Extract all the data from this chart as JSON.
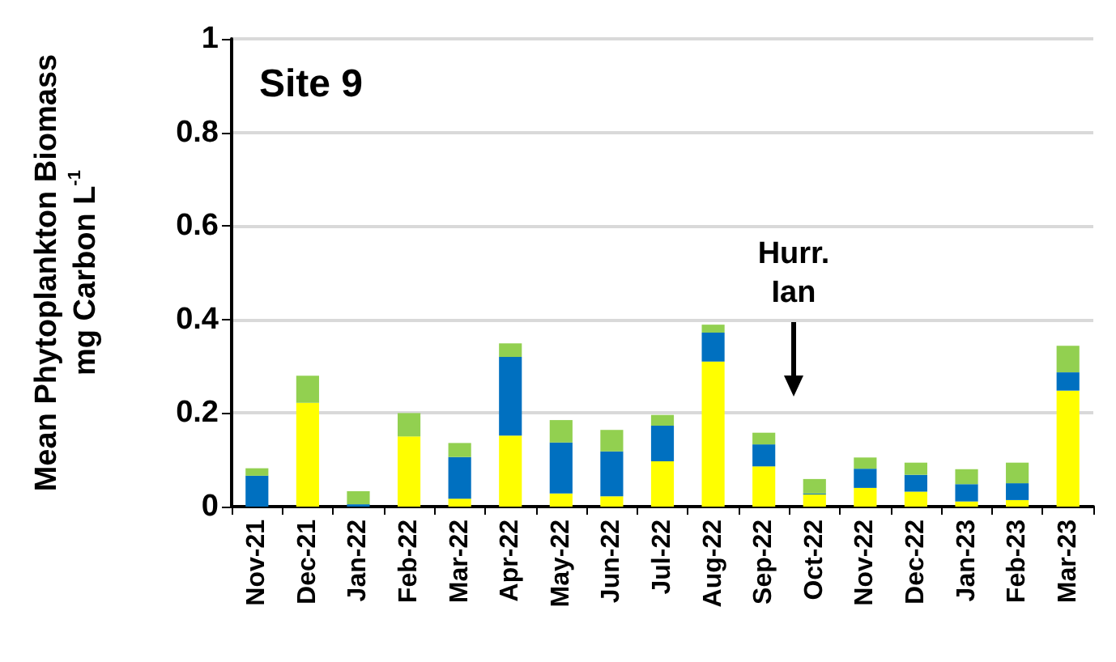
{
  "chart_data": {
    "type": "bar",
    "stacked": true,
    "categories": [
      "Nov-21",
      "Dec-21",
      "Jan-22",
      "Feb-22",
      "Mar-22",
      "Apr-22",
      "May-22",
      "Jun-22",
      "Jul-22",
      "Aug-22",
      "Sep-22",
      "Oct-22",
      "Nov-22",
      "Dec-22",
      "Jan-23",
      "Feb-23",
      "Mar-23"
    ],
    "series": [
      {
        "color": "#ffff00",
        "values": [
          0.0,
          0.222,
          0.0,
          0.15,
          0.017,
          0.152,
          0.028,
          0.022,
          0.097,
          0.31,
          0.086,
          0.026,
          0.04,
          0.032,
          0.011,
          0.014,
          0.248
        ]
      },
      {
        "color": "#0070c0",
        "values": [
          0.066,
          0.0,
          0.005,
          0.0,
          0.089,
          0.168,
          0.109,
          0.096,
          0.076,
          0.062,
          0.047,
          0.002,
          0.041,
          0.036,
          0.037,
          0.036,
          0.039
        ]
      },
      {
        "color": "#92d050",
        "values": [
          0.016,
          0.058,
          0.028,
          0.05,
          0.03,
          0.029,
          0.048,
          0.046,
          0.023,
          0.017,
          0.025,
          0.031,
          0.024,
          0.026,
          0.032,
          0.044,
          0.057
        ]
      }
    ],
    "ylabel": "Mean Phytoplankton Biomass\nmg Carbon L$^{-1}$",
    "ylim": [
      0,
      1
    ],
    "yticks": [
      0,
      0.2,
      0.4,
      0.6,
      0.8,
      1
    ],
    "grid": "y",
    "annotations": [
      "Site 9",
      "Hurr.\nIan"
    ]
  }
}
